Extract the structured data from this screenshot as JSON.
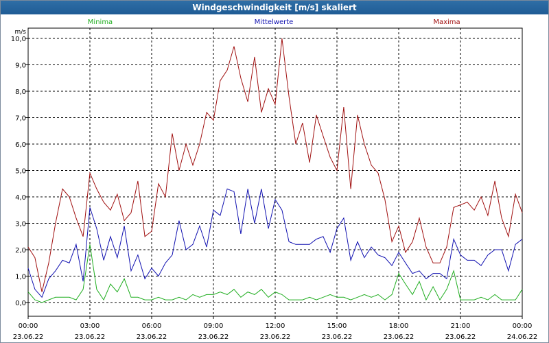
{
  "window": {
    "title": "Windgeschwindigkeit [m/s] skaliert"
  },
  "colors": {
    "minima": "#1fad1f",
    "mittelwerte": "#1010b0",
    "maxima": "#a01010",
    "grid": "#000000",
    "titlebar": "#245f99"
  },
  "chart_data": {
    "type": "line",
    "title": "Windgeschwindigkeit [m/s] skaliert",
    "ylabel": "m/s",
    "ylim": [
      0,
      10
    ],
    "yticks": [
      "0,0",
      "1,0",
      "2,0",
      "3,0",
      "4,0",
      "5,0",
      "6,0",
      "7,0",
      "8,0",
      "9,0",
      "10,0"
    ],
    "xticks": [
      {
        "time": "00:00",
        "date": "23.06.22"
      },
      {
        "time": "03:00",
        "date": "23.06.22"
      },
      {
        "time": "06:00",
        "date": "23.06.22"
      },
      {
        "time": "09:00",
        "date": "23.06.22"
      },
      {
        "time": "12:00",
        "date": "23.06.22"
      },
      {
        "time": "15:00",
        "date": "23.06.22"
      },
      {
        "time": "18:00",
        "date": "23.06.22"
      },
      {
        "time": "21:00",
        "date": "23.06.22"
      },
      {
        "time": "00:00",
        "date": "24.06.22"
      }
    ],
    "grid": true,
    "legend": "top",
    "x_unit": "hours since 23.06.22 00:00",
    "series": [
      {
        "name": "Maxima",
        "color": "#a01010",
        "x": [
          0,
          0.33,
          0.67,
          1,
          1.33,
          1.67,
          2,
          2.33,
          2.67,
          3,
          3.33,
          3.67,
          4,
          4.33,
          4.67,
          5,
          5.33,
          5.67,
          6,
          6.33,
          6.67,
          7,
          7.33,
          7.67,
          8,
          8.33,
          8.67,
          9,
          9.33,
          9.67,
          10,
          10.33,
          10.67,
          11,
          11.33,
          11.67,
          12,
          12.33,
          12.67,
          13,
          13.33,
          13.67,
          14,
          14.33,
          14.67,
          15,
          15.33,
          15.67,
          16,
          16.33,
          16.67,
          17,
          17.33,
          17.67,
          18,
          18.33,
          18.67,
          19,
          19.33,
          19.67,
          20,
          20.33,
          20.67,
          21,
          21.33,
          21.67,
          22,
          22.33,
          22.67,
          23,
          23.33,
          23.67,
          24
        ],
        "values": [
          2.1,
          1.7,
          0.4,
          1.5,
          3.0,
          4.3,
          4.0,
          3.2,
          2.5,
          4.9,
          4.3,
          3.8,
          3.5,
          4.1,
          3.1,
          3.4,
          4.6,
          2.5,
          2.7,
          4.5,
          4.0,
          6.4,
          5.0,
          6.0,
          5.2,
          6.0,
          7.2,
          6.9,
          8.4,
          8.8,
          9.7,
          8.5,
          7.6,
          9.3,
          7.2,
          8.1,
          7.5,
          10.0,
          7.8,
          6.0,
          6.8,
          5.3,
          7.1,
          6.3,
          5.5,
          5.0,
          7.4,
          4.3,
          7.1,
          6.0,
          5.2,
          4.9,
          3.9,
          2.3,
          2.9,
          1.9,
          2.3,
          3.2,
          2.1,
          1.5,
          1.5,
          2.1,
          3.6,
          3.7,
          3.8,
          3.5,
          4.0,
          3.3,
          4.6,
          3.2,
          2.5,
          4.1,
          3.4
        ],
        "labels_bind": true
      },
      {
        "name": "Mittelwerte",
        "color": "#1010b0",
        "x": [
          0,
          0.33,
          0.67,
          1,
          1.33,
          1.67,
          2,
          2.33,
          2.67,
          3,
          3.33,
          3.67,
          4,
          4.33,
          4.67,
          5,
          5.33,
          5.67,
          6,
          6.33,
          6.67,
          7,
          7.33,
          7.67,
          8,
          8.33,
          8.67,
          9,
          9.33,
          9.67,
          10,
          10.33,
          10.67,
          11,
          11.33,
          11.67,
          12,
          12.33,
          12.67,
          13,
          13.33,
          13.67,
          14,
          14.33,
          14.67,
          15,
          15.33,
          15.67,
          16,
          16.33,
          16.67,
          17,
          17.33,
          17.67,
          18,
          18.33,
          18.67,
          19,
          19.33,
          19.67,
          20,
          20.33,
          20.67,
          21,
          21.33,
          21.67,
          22,
          22.33,
          22.67,
          23,
          23.33,
          23.67,
          24
        ],
        "values": [
          1.3,
          0.5,
          0.2,
          0.9,
          1.2,
          1.6,
          1.5,
          2.2,
          0.8,
          3.6,
          2.8,
          1.6,
          2.5,
          1.7,
          2.9,
          1.2,
          1.8,
          0.9,
          1.3,
          1.0,
          1.5,
          1.8,
          3.1,
          2.0,
          2.2,
          2.9,
          2.1,
          3.5,
          3.3,
          4.3,
          4.2,
          2.6,
          4.3,
          3.0,
          4.3,
          2.8,
          3.9,
          3.5,
          2.3,
          2.2,
          2.2,
          2.2,
          2.4,
          2.5,
          1.9,
          2.8,
          3.2,
          1.6,
          2.3,
          1.7,
          2.1,
          1.8,
          1.7,
          1.4,
          1.9,
          1.5,
          1.1,
          1.2,
          0.9,
          1.1,
          1.1,
          0.9,
          2.4,
          1.8,
          1.6,
          1.6,
          1.4,
          1.8,
          2.0,
          2.0,
          1.2,
          2.2,
          2.4
        ]
      },
      {
        "name": "Minima",
        "color": "#1fad1f",
        "x": [
          0,
          0.33,
          0.67,
          1,
          1.33,
          1.67,
          2,
          2.33,
          2.67,
          3,
          3.33,
          3.67,
          4,
          4.33,
          4.67,
          5,
          5.33,
          5.67,
          6,
          6.33,
          6.67,
          7,
          7.33,
          7.67,
          8,
          8.33,
          8.67,
          9,
          9.33,
          9.67,
          10,
          10.33,
          10.67,
          11,
          11.33,
          11.67,
          12,
          12.33,
          12.67,
          13,
          13.33,
          13.67,
          14,
          14.33,
          14.67,
          15,
          15.33,
          15.67,
          16,
          16.33,
          16.67,
          17,
          17.33,
          17.67,
          18,
          18.33,
          18.67,
          19,
          19.33,
          19.67,
          20,
          20.33,
          20.67,
          21,
          21.33,
          21.67,
          22,
          22.33,
          22.67,
          23,
          23.33,
          23.67,
          24
        ],
        "values": [
          0.4,
          0.1,
          0.0,
          0.1,
          0.2,
          0.2,
          0.2,
          0.1,
          0.5,
          2.2,
          0.5,
          0.1,
          0.7,
          0.4,
          0.9,
          0.2,
          0.2,
          0.1,
          0.1,
          0.2,
          0.1,
          0.1,
          0.2,
          0.1,
          0.3,
          0.2,
          0.3,
          0.3,
          0.4,
          0.3,
          0.5,
          0.2,
          0.4,
          0.3,
          0.5,
          0.2,
          0.4,
          0.3,
          0.1,
          0.1,
          0.1,
          0.2,
          0.1,
          0.2,
          0.3,
          0.2,
          0.2,
          0.1,
          0.2,
          0.3,
          0.2,
          0.3,
          0.1,
          0.3,
          1.1,
          0.7,
          0.3,
          0.8,
          0.1,
          0.6,
          0.1,
          0.5,
          1.2,
          0.1,
          0.1,
          0.1,
          0.2,
          0.1,
          0.3,
          0.1,
          0.1,
          0.1,
          0.5
        ]
      }
    ]
  }
}
